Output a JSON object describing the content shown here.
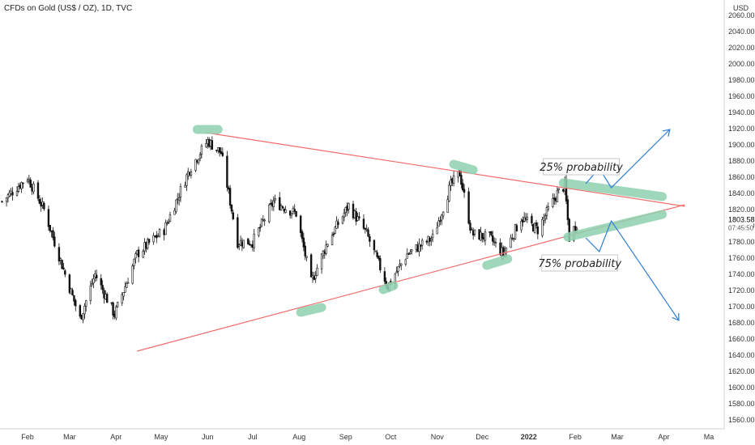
{
  "header": {
    "title": "CFDs on Gold (US$ / OZ), 1D, TVC",
    "currency": "USD"
  },
  "colors": {
    "background": "#ffffff",
    "candle": "#111111",
    "trendline": "#f26b6b",
    "highlight": "#8fd1b0",
    "projection": "#2f7fd6",
    "axis_text": "#333333",
    "price_label_bg": "#ffffff"
  },
  "chart_data": {
    "type": "candlestick",
    "title": "CFDs on Gold (US$ / OZ), 1D, TVC",
    "y_unit": "USD",
    "ylim": [
      1550,
      2065
    ],
    "y_ticks": [
      1560,
      1580,
      1600,
      1620,
      1640,
      1660,
      1680,
      1700,
      1720,
      1740,
      1760,
      1780,
      1800,
      1820,
      1840,
      1860,
      1880,
      1900,
      1920,
      1940,
      1960,
      1980,
      2000,
      2020,
      2040,
      2060
    ],
    "x_ticks": [
      "Feb",
      "Mar",
      "Apr",
      "May",
      "Jun",
      "Jul",
      "Aug",
      "Sep",
      "Oct",
      "Nov",
      "Dec",
      "2022",
      "Feb",
      "Mar",
      "Apr",
      "Ma"
    ],
    "current_price": "1803.58",
    "countdown": "07:45:50",
    "price_anchors": [
      {
        "date": "2021-01-15",
        "price": 1830
      },
      {
        "date": "2021-02-01",
        "price": 1860
      },
      {
        "date": "2021-02-12",
        "price": 1820
      },
      {
        "date": "2021-02-26",
        "price": 1740
      },
      {
        "date": "2021-03-08",
        "price": 1685
      },
      {
        "date": "2021-03-18",
        "price": 1740
      },
      {
        "date": "2021-03-31",
        "price": 1690
      },
      {
        "date": "2021-04-15",
        "price": 1765
      },
      {
        "date": "2021-05-03",
        "price": 1795
      },
      {
        "date": "2021-05-20",
        "price": 1870
      },
      {
        "date": "2021-06-01",
        "price": 1905
      },
      {
        "date": "2021-06-10",
        "price": 1890
      },
      {
        "date": "2021-06-21",
        "price": 1780
      },
      {
        "date": "2021-07-01",
        "price": 1780
      },
      {
        "date": "2021-07-15",
        "price": 1830
      },
      {
        "date": "2021-07-30",
        "price": 1815
      },
      {
        "date": "2021-08-09",
        "price": 1730
      },
      {
        "date": "2021-08-20",
        "price": 1780
      },
      {
        "date": "2021-09-03",
        "price": 1825
      },
      {
        "date": "2021-09-15",
        "price": 1790
      },
      {
        "date": "2021-09-29",
        "price": 1725
      },
      {
        "date": "2021-10-12",
        "price": 1765
      },
      {
        "date": "2021-10-29",
        "price": 1785
      },
      {
        "date": "2021-11-10",
        "price": 1850
      },
      {
        "date": "2021-11-16",
        "price": 1865
      },
      {
        "date": "2021-11-24",
        "price": 1790
      },
      {
        "date": "2021-12-06",
        "price": 1785
      },
      {
        "date": "2021-12-15",
        "price": 1765
      },
      {
        "date": "2021-12-27",
        "price": 1810
      },
      {
        "date": "2022-01-07",
        "price": 1795
      },
      {
        "date": "2022-01-20",
        "price": 1840
      },
      {
        "date": "2022-01-25",
        "price": 1850
      },
      {
        "date": "2022-01-28",
        "price": 1785
      },
      {
        "date": "2022-02-02",
        "price": 1803.58
      }
    ],
    "trendlines": [
      {
        "name": "resistance",
        "from": {
          "date": "2021-05-31",
          "price": 1915
        },
        "to": {
          "date": "2022-04-15",
          "price": 1824
        }
      },
      {
        "name": "support",
        "from": {
          "date": "2021-04-15",
          "price": 1645
        },
        "to": {
          "date": "2022-04-15",
          "price": 1826
        }
      }
    ],
    "highlights": [
      {
        "from": {
          "date": "2021-05-25",
          "price": 1919
        },
        "to": {
          "date": "2021-06-08",
          "price": 1919
        }
      },
      {
        "from": {
          "date": "2021-08-02",
          "price": 1693
        },
        "to": {
          "date": "2021-08-16",
          "price": 1699
        }
      },
      {
        "from": {
          "date": "2021-09-26",
          "price": 1721
        },
        "to": {
          "date": "2021-10-03",
          "price": 1726
        }
      },
      {
        "from": {
          "date": "2021-11-12",
          "price": 1876
        },
        "to": {
          "date": "2021-11-25",
          "price": 1869
        }
      },
      {
        "from": {
          "date": "2021-12-04",
          "price": 1751
        },
        "to": {
          "date": "2021-12-18",
          "price": 1759
        }
      },
      {
        "from": {
          "date": "2022-01-24",
          "price": 1853
        },
        "to": {
          "date": "2022-03-31",
          "price": 1836
        }
      },
      {
        "from": {
          "date": "2022-01-27",
          "price": 1786
        },
        "to": {
          "date": "2022-03-31",
          "price": 1814
        }
      }
    ],
    "projections": [
      {
        "points": [
          {
            "date": "2022-02-08",
            "price": 1852
          },
          {
            "date": "2022-02-17",
            "price": 1871
          },
          {
            "date": "2022-02-25",
            "price": 1847
          },
          {
            "date": "2022-04-05",
            "price": 1919
          }
        ]
      },
      {
        "points": [
          {
            "date": "2022-02-08",
            "price": 1785
          },
          {
            "date": "2022-02-17",
            "price": 1768
          },
          {
            "date": "2022-02-25",
            "price": 1806
          },
          {
            "date": "2022-04-11",
            "price": 1683
          }
        ]
      }
    ],
    "annotations": [
      {
        "text": "25% probability",
        "date": "2022-02-05",
        "price": 1868
      },
      {
        "text": "75% probability",
        "date": "2022-02-04",
        "price": 1749
      }
    ]
  }
}
